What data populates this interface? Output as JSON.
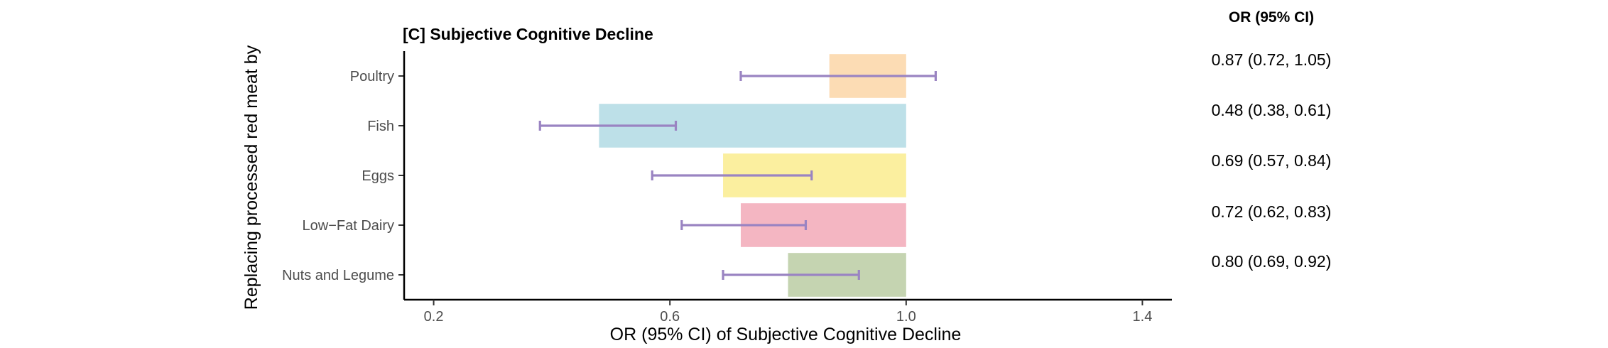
{
  "chart_data": {
    "type": "bar",
    "title": "[C] Subjective Cognitive Decline",
    "xlabel": "OR (95% CI) of Subjective Cognitive Decline",
    "ylabel": "Replacing processed red meat by",
    "xlim": [
      0.15,
      1.45
    ],
    "reference": 1.0,
    "xticks": [
      "0.2",
      "0.6",
      "1.0",
      "1.4"
    ],
    "grid": false,
    "categories": [
      "Poultry",
      "Fish",
      "Eggs",
      "Low−Fat Dairy",
      "Nuts and Legume"
    ],
    "or": [
      0.87,
      0.48,
      0.69,
      0.72,
      0.8
    ],
    "ci_low": [
      0.72,
      0.38,
      0.57,
      0.62,
      0.69
    ],
    "ci_high": [
      1.05,
      0.61,
      0.84,
      0.83,
      0.92
    ],
    "colors": [
      "#fcdcb4",
      "#bde0e8",
      "#fbef9f",
      "#f4b6c2",
      "#c5d4b1"
    ],
    "errorbar_color": "#9a84c2",
    "table_header": "OR (95% CI)",
    "table_rows": [
      "0.87 (0.72, 1.05)",
      "0.48 (0.38, 0.61)",
      "0.69 (0.57, 0.84)",
      "0.72 (0.62, 0.83)",
      "0.80 (0.69, 0.92)"
    ]
  }
}
